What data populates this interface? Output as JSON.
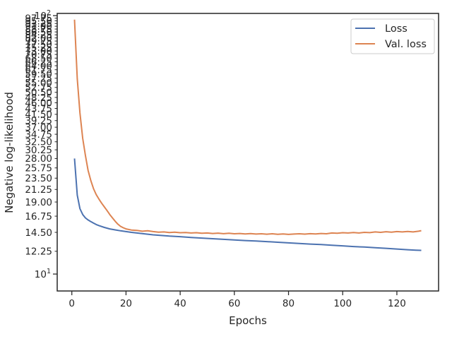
{
  "chart_data": {
    "type": "line",
    "title": "",
    "xlabel": "Epochs",
    "ylabel": "Negative log-likelihood",
    "yscale": "log",
    "xlim": [
      -5.4,
      135.4
    ],
    "ylim": [
      8.6,
      102
    ],
    "grid": false,
    "legend_position": "top-right",
    "x_ticks": [
      0,
      20,
      40,
      60,
      80,
      100,
      120
    ],
    "x_tick_labels": [
      "0",
      "20",
      "40",
      "60",
      "80",
      "100",
      "120"
    ],
    "y_major_ticks": [
      10,
      100
    ],
    "y_major_tick_labels": [
      "10",
      "10"
    ],
    "y_major_tick_exponents": [
      "1",
      "2"
    ],
    "y_minor_ticks": [
      12.25,
      14.5,
      16.75,
      19.0,
      21.25,
      23.5,
      25.75,
      28.0,
      30.25,
      32.5,
      34.75,
      37.0,
      39.25,
      41.5,
      43.75,
      46.0,
      48.25,
      50.5,
      52.75,
      55.0,
      57.25,
      59.5,
      61.75,
      64.0,
      66.25,
      68.5,
      70.75,
      73.0,
      75.25,
      77.5,
      79.75,
      82.0,
      84.25,
      86.5,
      88.75,
      91.0,
      93.25,
      95.5,
      97.75
    ],
    "y_minor_tick_labels": [
      "12.25",
      "14.50",
      "16.75",
      "19.00",
      "21.25",
      "23.50",
      "25.75",
      "28.00",
      "30.25",
      "32.50",
      "34.75",
      "37.00",
      "39.25",
      "41.50",
      "43.75",
      "46.00",
      "48.25",
      "50.50",
      "52.75",
      "55.00",
      "57.25",
      "59.50",
      "61.75",
      "64.00",
      "66.25",
      "68.50",
      "70.75",
      "73.00",
      "75.25",
      "77.50",
      "79.75",
      "82.00",
      "84.25",
      "86.50",
      "88.75",
      "91.00",
      "93.25",
      "95.50",
      "97.75"
    ],
    "series": [
      {
        "name": "Loss",
        "color": "#4c72b0",
        "points": [
          [
            1,
            28.0
          ],
          [
            2,
            20.2
          ],
          [
            3,
            17.9
          ],
          [
            4,
            17.0
          ],
          [
            5,
            16.5
          ],
          [
            6,
            16.2
          ],
          [
            7,
            15.95
          ],
          [
            8,
            15.75
          ],
          [
            9,
            15.55
          ],
          [
            10,
            15.4
          ],
          [
            12,
            15.15
          ],
          [
            14,
            14.95
          ],
          [
            16,
            14.82
          ],
          [
            18,
            14.7
          ],
          [
            20,
            14.6
          ],
          [
            22,
            14.5
          ],
          [
            24,
            14.42
          ],
          [
            26,
            14.34
          ],
          [
            28,
            14.26
          ],
          [
            30,
            14.18
          ],
          [
            33,
            14.1
          ],
          [
            36,
            14.02
          ],
          [
            40,
            13.95
          ],
          [
            44,
            13.86
          ],
          [
            48,
            13.78
          ],
          [
            52,
            13.7
          ],
          [
            56,
            13.62
          ],
          [
            60,
            13.55
          ],
          [
            64,
            13.48
          ],
          [
            68,
            13.42
          ],
          [
            72,
            13.35
          ],
          [
            76,
            13.28
          ],
          [
            80,
            13.2
          ],
          [
            84,
            13.13
          ],
          [
            88,
            13.06
          ],
          [
            92,
            13.0
          ],
          [
            96,
            12.92
          ],
          [
            100,
            12.86
          ],
          [
            104,
            12.78
          ],
          [
            108,
            12.72
          ],
          [
            112,
            12.64
          ],
          [
            116,
            12.58
          ],
          [
            120,
            12.5
          ],
          [
            124,
            12.42
          ],
          [
            127,
            12.37
          ],
          [
            129,
            12.35
          ]
        ]
      },
      {
        "name": "Val. loss",
        "color": "#dd8452",
        "points": [
          [
            1,
            96.5
          ],
          [
            2,
            57.0
          ],
          [
            3,
            42.0
          ],
          [
            4,
            33.5
          ],
          [
            5,
            28.8
          ],
          [
            6,
            25.2
          ],
          [
            7,
            23.0
          ],
          [
            8,
            21.4
          ],
          [
            9,
            20.3
          ],
          [
            10,
            19.5
          ],
          [
            11,
            18.8
          ],
          [
            12,
            18.2
          ],
          [
            13,
            17.6
          ],
          [
            14,
            17.0
          ],
          [
            15,
            16.5
          ],
          [
            16,
            16.0
          ],
          [
            17,
            15.6
          ],
          [
            18,
            15.3
          ],
          [
            19,
            15.1
          ],
          [
            20,
            14.95
          ],
          [
            22,
            14.8
          ],
          [
            24,
            14.75
          ],
          [
            26,
            14.65
          ],
          [
            28,
            14.7
          ],
          [
            30,
            14.6
          ],
          [
            32,
            14.52
          ],
          [
            34,
            14.55
          ],
          [
            36,
            14.48
          ],
          [
            38,
            14.52
          ],
          [
            40,
            14.45
          ],
          [
            42,
            14.48
          ],
          [
            44,
            14.42
          ],
          [
            46,
            14.45
          ],
          [
            48,
            14.38
          ],
          [
            50,
            14.42
          ],
          [
            52,
            14.35
          ],
          [
            54,
            14.4
          ],
          [
            56,
            14.33
          ],
          [
            58,
            14.38
          ],
          [
            60,
            14.32
          ],
          [
            62,
            14.35
          ],
          [
            64,
            14.3
          ],
          [
            66,
            14.34
          ],
          [
            68,
            14.28
          ],
          [
            70,
            14.32
          ],
          [
            72,
            14.26
          ],
          [
            74,
            14.32
          ],
          [
            76,
            14.25
          ],
          [
            78,
            14.3
          ],
          [
            80,
            14.24
          ],
          [
            82,
            14.28
          ],
          [
            84,
            14.32
          ],
          [
            86,
            14.27
          ],
          [
            88,
            14.33
          ],
          [
            90,
            14.3
          ],
          [
            92,
            14.35
          ],
          [
            94,
            14.32
          ],
          [
            96,
            14.42
          ],
          [
            98,
            14.38
          ],
          [
            100,
            14.45
          ],
          [
            102,
            14.42
          ],
          [
            104,
            14.48
          ],
          [
            106,
            14.42
          ],
          [
            108,
            14.5
          ],
          [
            110,
            14.46
          ],
          [
            112,
            14.55
          ],
          [
            114,
            14.5
          ],
          [
            116,
            14.58
          ],
          [
            118,
            14.52
          ],
          [
            120,
            14.6
          ],
          [
            122,
            14.55
          ],
          [
            124,
            14.62
          ],
          [
            126,
            14.55
          ],
          [
            128,
            14.65
          ],
          [
            129,
            14.72
          ]
        ]
      }
    ]
  }
}
